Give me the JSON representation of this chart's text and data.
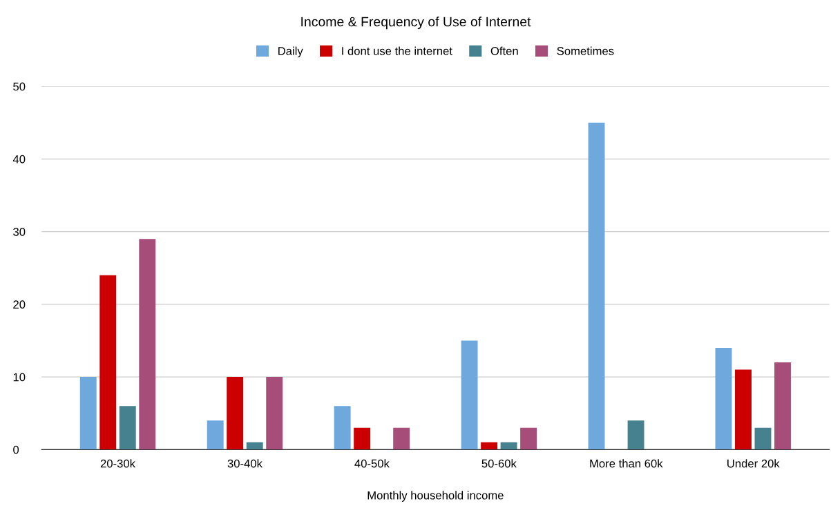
{
  "chart_data": {
    "type": "bar",
    "title": "Income & Frequency of Use of Internet",
    "xlabel": "Monthly household income",
    "categories": [
      "20-30k",
      "30-40k",
      "40-50k",
      "50-60k",
      "More than 60k",
      "Under 20k"
    ],
    "series": [
      {
        "name": "Daily",
        "color": "#6fa8dc",
        "values": [
          10,
          4,
          6,
          15,
          45,
          14
        ]
      },
      {
        "name": "I dont use the internet",
        "color": "#cc0000",
        "values": [
          24,
          10,
          3,
          1,
          null,
          11
        ]
      },
      {
        "name": "Often",
        "color": "#45818e",
        "values": [
          6,
          1,
          null,
          1,
          4,
          3
        ]
      },
      {
        "name": "Sometimes",
        "color": "#a64d79",
        "values": [
          29,
          10,
          3,
          3,
          null,
          12
        ]
      }
    ],
    "ylim": [
      0,
      50
    ],
    "yticks": [
      0,
      10,
      20,
      30,
      40,
      50
    ],
    "grid": "y",
    "legend": "top"
  }
}
